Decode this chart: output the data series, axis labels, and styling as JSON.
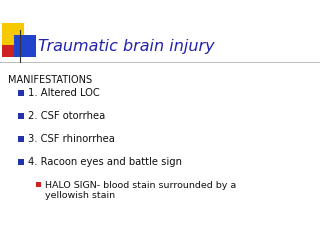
{
  "title": "Traumatic brain injury",
  "title_color": "#2222aa",
  "title_fontsize": 11.5,
  "background_color": "#ffffff",
  "header": "MANIFESTATIONS",
  "header_fontsize": 7.0,
  "bullet_color_main": "#2233aa",
  "bullet_color_sub": "#cc2222",
  "items_level1": [
    "1. Altered LOC",
    "2. CSF otorrhea",
    "3. CSF rhinorrhea",
    "4. Racoon eyes and battle sign"
  ],
  "items_level2": [
    "HALO SIGN- blood stain surrounded by a\nyellowish stain"
  ],
  "item_fontsize": 7.2,
  "sub_item_fontsize": 6.8,
  "line_color": "#bbbbbb"
}
